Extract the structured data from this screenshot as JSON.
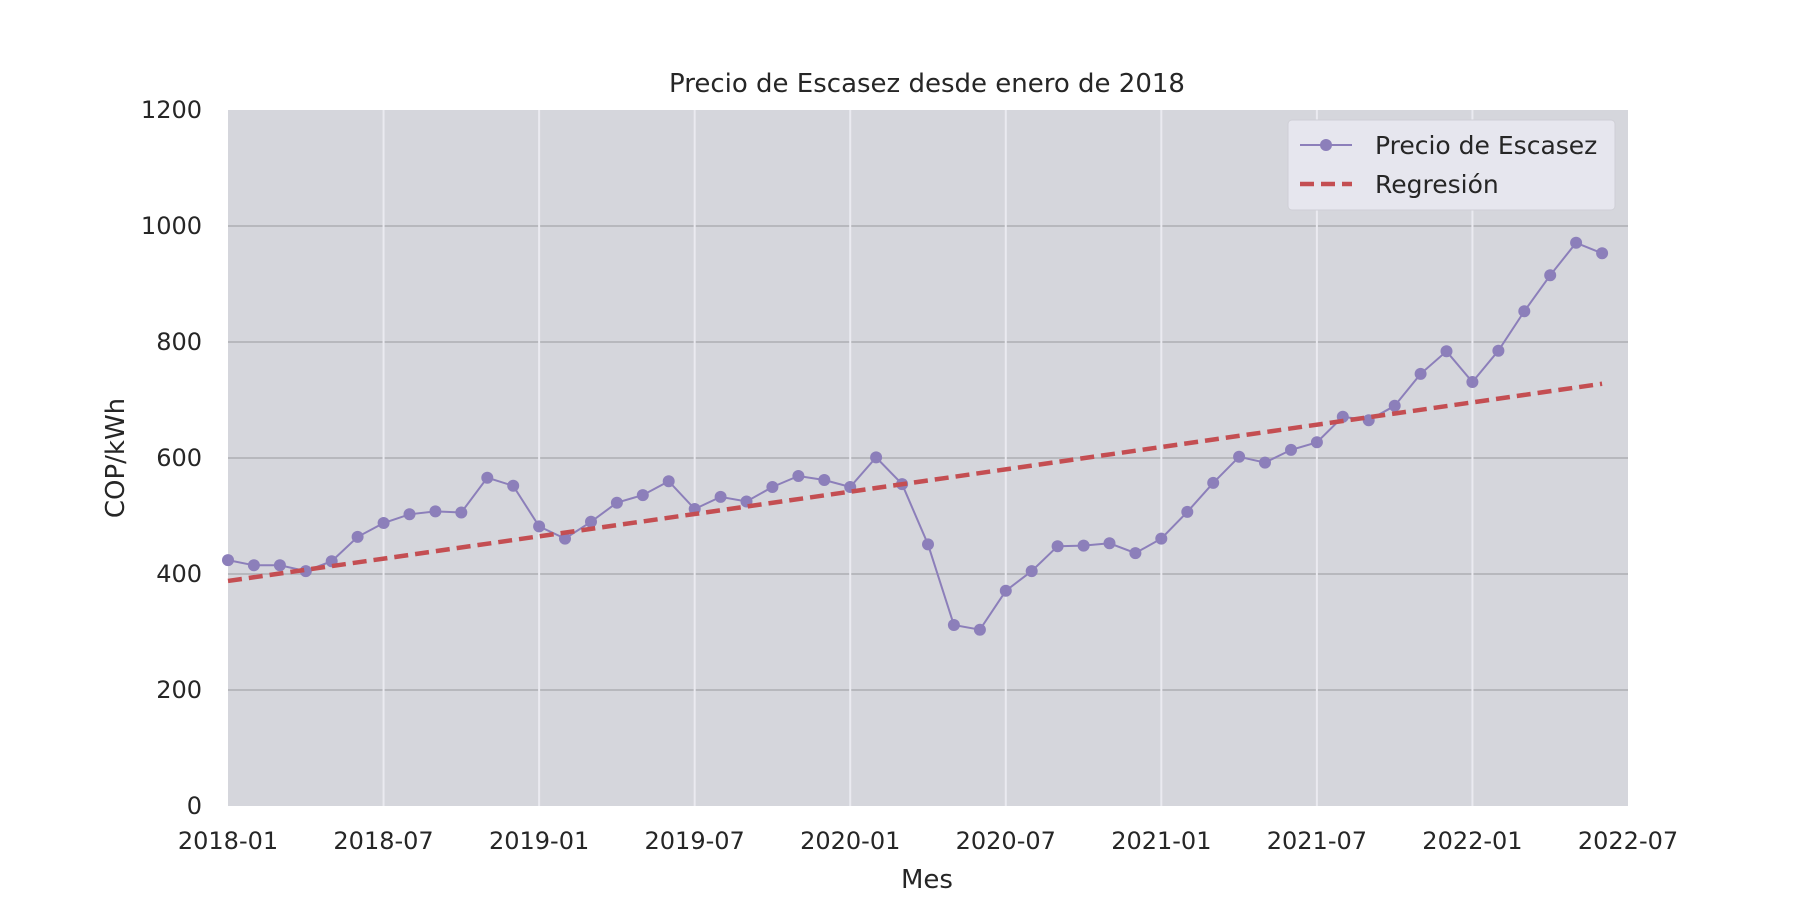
{
  "chart_data": {
    "type": "line",
    "title": "Precio de Escasez desde enero de 2018",
    "xlabel": "Mes",
    "ylabel": "COP/kWh",
    "ylim": [
      0,
      1200
    ],
    "yticks": [
      "0",
      "200",
      "400",
      "600",
      "800",
      "1000",
      "1200"
    ],
    "xlim": [
      "2018-01",
      "2022-07"
    ],
    "xticks": [
      "2018-01",
      "2018-07",
      "2019-01",
      "2019-07",
      "2020-01",
      "2020-07",
      "2021-01",
      "2021-07",
      "2022-01",
      "2022-07"
    ],
    "grid": true,
    "legend_position": "top-right",
    "x": [
      "2018-01",
      "2018-02",
      "2018-03",
      "2018-04",
      "2018-05",
      "2018-06",
      "2018-07",
      "2018-08",
      "2018-09",
      "2018-10",
      "2018-11",
      "2018-12",
      "2019-01",
      "2019-02",
      "2019-03",
      "2019-04",
      "2019-05",
      "2019-06",
      "2019-07",
      "2019-08",
      "2019-09",
      "2019-10",
      "2019-11",
      "2019-12",
      "2020-01",
      "2020-02",
      "2020-03",
      "2020-04",
      "2020-05",
      "2020-06",
      "2020-07",
      "2020-08",
      "2020-09",
      "2020-10",
      "2020-11",
      "2020-12",
      "2021-01",
      "2021-02",
      "2021-03",
      "2021-04",
      "2021-05",
      "2021-06",
      "2021-07",
      "2021-08",
      "2021-09",
      "2021-10",
      "2021-11",
      "2021-12",
      "2022-01",
      "2022-02",
      "2022-03",
      "2022-04",
      "2022-05",
      "2022-06"
    ],
    "series": [
      {
        "name": "Precio de Escasez",
        "color": "#8c7fba",
        "style": "line-marker",
        "values": [
          424,
          415,
          415,
          405,
          422,
          464,
          488,
          503,
          508,
          506,
          566,
          552,
          482,
          461,
          490,
          523,
          536,
          560,
          512,
          533,
          525,
          550,
          569,
          562,
          550,
          601,
          555,
          451,
          312,
          304,
          371,
          405,
          448,
          449,
          453,
          436,
          461,
          507,
          557,
          602,
          592,
          614,
          627,
          671,
          665,
          690,
          745,
          784,
          731,
          785,
          853,
          915,
          971,
          953
        ]
      },
      {
        "name": "Regresión",
        "color": "#c44e52",
        "style": "dashed",
        "x": [
          "2018-01",
          "2022-06"
        ],
        "values": [
          388,
          728
        ]
      }
    ]
  },
  "colors": {
    "plot_background": "#d5d6dc",
    "grid": "#b7b8bd",
    "vertical_grid": "#eaeaf0",
    "legend_background": "#e6e6ee"
  }
}
